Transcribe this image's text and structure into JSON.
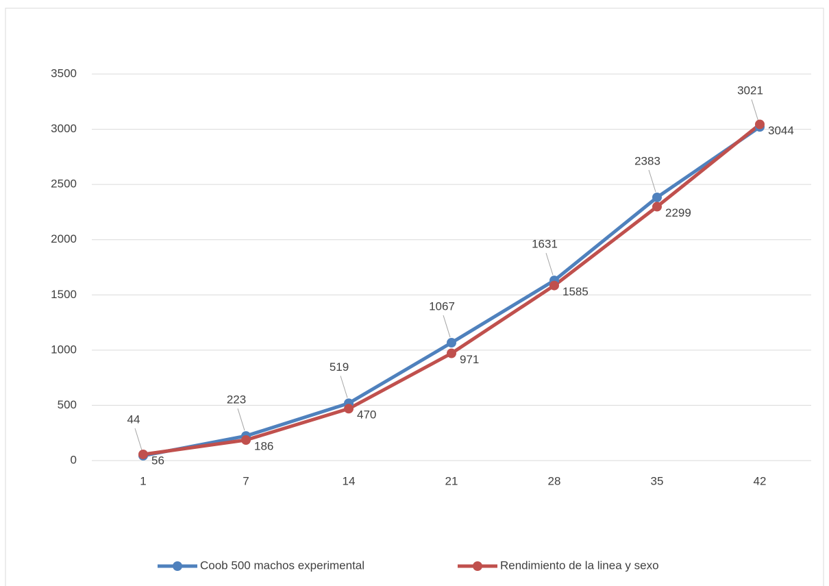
{
  "chart_data": {
    "type": "line",
    "categories": [
      "1",
      "7",
      "14",
      "21",
      "28",
      "35",
      "42"
    ],
    "series": [
      {
        "name": "Coob 500 machos experimental",
        "color": "#4f81bd",
        "values": [
          44,
          223,
          519,
          1067,
          1631,
          2383,
          3021
        ]
      },
      {
        "name": "Rendimiento de la linea y sexo",
        "color": "#c0504d",
        "values": [
          56,
          186,
          470,
          971,
          1585,
          2299,
          3044
        ]
      }
    ],
    "ylim": [
      0,
      3500
    ],
    "yticks": [
      0,
      500,
      1000,
      1500,
      2000,
      2500,
      3000,
      3500
    ],
    "grid": true,
    "legend": "bottom"
  }
}
